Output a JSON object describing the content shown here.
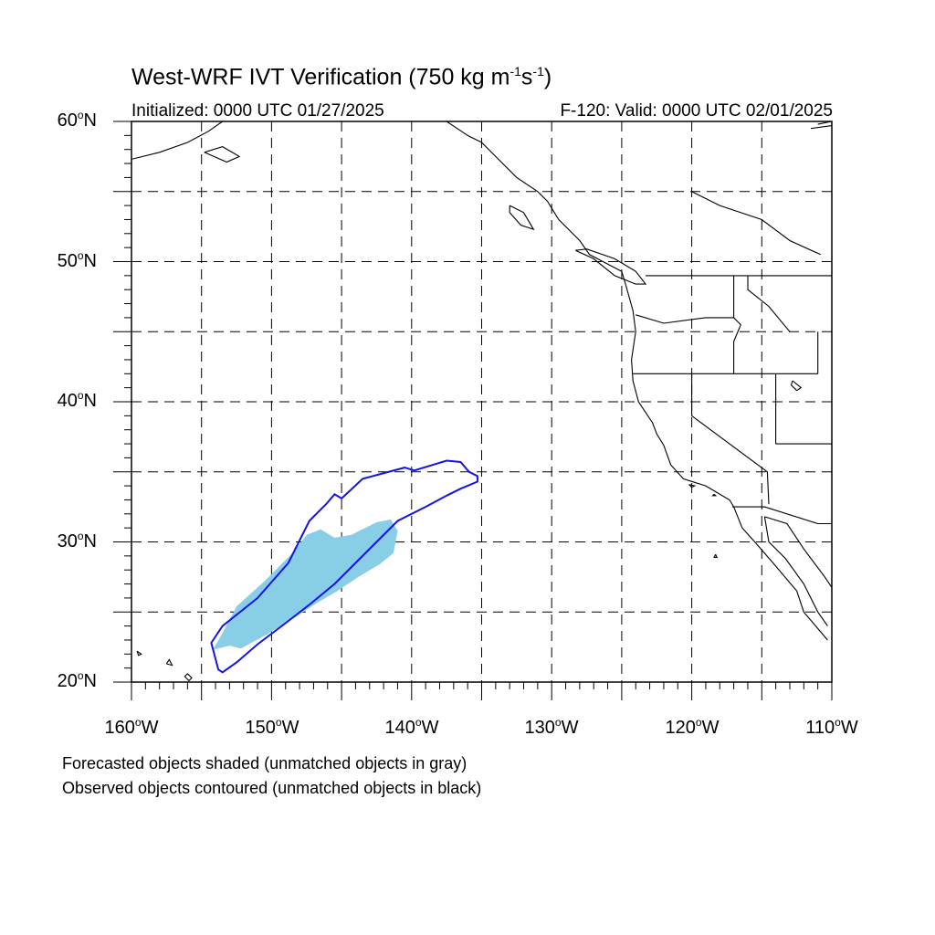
{
  "title": {
    "prefix": "West-WRF IVT Verification (750 kg m",
    "exp1": "-1",
    "mid": "s",
    "exp2": "-1",
    "suffix": ")"
  },
  "subtitle_left": "Initialized: 0000 UTC 01/27/2025",
  "subtitle_right": "F-120: Valid: 0000 UTC 02/01/2025",
  "lat_labels": [
    {
      "value": "60",
      "hemi": "N"
    },
    {
      "value": "50",
      "hemi": "N"
    },
    {
      "value": "40",
      "hemi": "N"
    },
    {
      "value": "30",
      "hemi": "N"
    },
    {
      "value": "20",
      "hemi": "N"
    }
  ],
  "lon_labels": [
    {
      "value": "160",
      "hemi": "W"
    },
    {
      "value": "150",
      "hemi": "W"
    },
    {
      "value": "140",
      "hemi": "W"
    },
    {
      "value": "130",
      "hemi": "W"
    },
    {
      "value": "120",
      "hemi": "W"
    },
    {
      "value": "110",
      "hemi": "W"
    }
  ],
  "notes": [
    "Forecasted objects shaded (unmatched objects in gray)",
    "Observed objects contoured (unmatched objects in black)"
  ],
  "colors": {
    "forecast_fill": "#87CEE6",
    "observed_contour": "#1414E6",
    "coastline": "#000000",
    "grid": "#000000"
  },
  "chart_data": {
    "type": "map",
    "projection": "cylindrical equidistant",
    "lon_range": [
      -160,
      -110
    ],
    "lat_range": [
      20,
      60
    ],
    "grid_spacing_deg": 5,
    "grid": true,
    "forecast_object": [
      [
        -154.2,
        22.3
      ],
      [
        -153.5,
        23.5
      ],
      [
        -152.5,
        25.4
      ],
      [
        -150.5,
        27.2
      ],
      [
        -148.5,
        29.2
      ],
      [
        -147.5,
        30.5
      ],
      [
        -146.5,
        30.9
      ],
      [
        -145.5,
        30.3
      ],
      [
        -144.3,
        30.5
      ],
      [
        -142.5,
        31.4
      ],
      [
        -141.5,
        31.6
      ],
      [
        -141.0,
        30.8
      ],
      [
        -141.3,
        29.2
      ],
      [
        -142.3,
        28.4
      ],
      [
        -143.8,
        27.5
      ],
      [
        -145.3,
        26.5
      ],
      [
        -147.0,
        25.5
      ],
      [
        -148.5,
        24.5
      ],
      [
        -150.5,
        23.3
      ],
      [
        -152.2,
        22.4
      ],
      [
        -153.0,
        22.6
      ]
    ],
    "observed_object": [
      [
        -153.8,
        20.9
      ],
      [
        -154.3,
        22.8
      ],
      [
        -153.5,
        24.0
      ],
      [
        -151.0,
        26.0
      ],
      [
        -148.8,
        28.5
      ],
      [
        -147.3,
        31.5
      ],
      [
        -146.1,
        32.7
      ],
      [
        -145.5,
        33.4
      ],
      [
        -145.0,
        33.1
      ],
      [
        -143.5,
        34.5
      ],
      [
        -140.5,
        35.3
      ],
      [
        -139.8,
        35.1
      ],
      [
        -137.5,
        35.8
      ],
      [
        -136.5,
        35.7
      ],
      [
        -135.9,
        35.0
      ],
      [
        -135.3,
        34.7
      ],
      [
        -135.3,
        34.3
      ],
      [
        -136.5,
        33.8
      ],
      [
        -137.5,
        33.3
      ],
      [
        -139.0,
        32.5
      ],
      [
        -141.0,
        31.5
      ],
      [
        -142.5,
        30.0
      ],
      [
        -144.0,
        28.5
      ],
      [
        -145.5,
        27.0
      ],
      [
        -147.2,
        25.6
      ],
      [
        -149.0,
        24.2
      ],
      [
        -151.0,
        22.7
      ],
      [
        -152.5,
        21.4
      ],
      [
        -153.5,
        20.7
      ]
    ]
  }
}
